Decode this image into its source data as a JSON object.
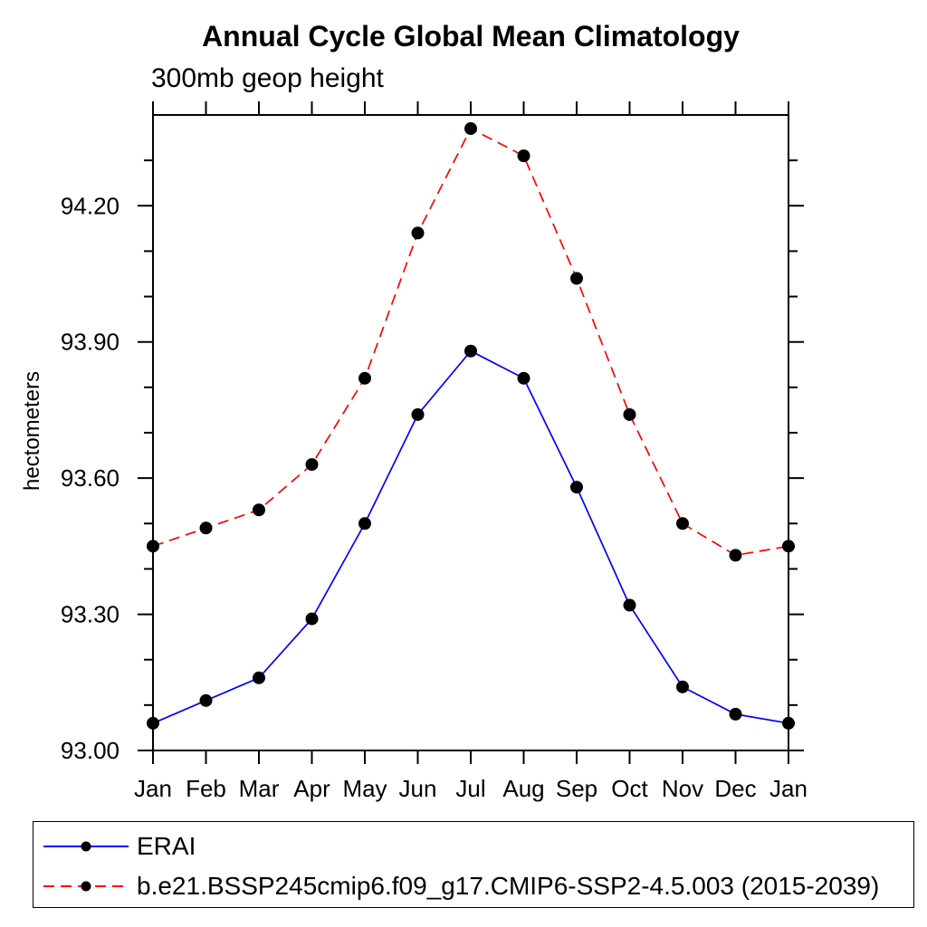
{
  "chart_data": {
    "type": "line",
    "title": "Annual Cycle Global Mean Climatology",
    "subtitle": "300mb geop height",
    "ylabel": "hectometers",
    "xlabel": "",
    "categories": [
      "Jan",
      "Feb",
      "Mar",
      "Apr",
      "May",
      "Jun",
      "Jul",
      "Aug",
      "Sep",
      "Oct",
      "Nov",
      "Dec",
      "Jan"
    ],
    "ylim": [
      93.0,
      94.4
    ],
    "y_major_ticks": [
      93.0,
      93.3,
      93.6,
      93.9,
      94.2
    ],
    "y_tick_labels": [
      "93.00",
      "93.30",
      "93.60",
      "93.90",
      "94.20"
    ],
    "y_minor_step": 0.1,
    "grid": false,
    "legend_position": "bottom",
    "series": [
      {
        "name": "ERAI",
        "color": "#0000ff",
        "style": "solid",
        "marker": "circle",
        "marker_color": "#000000",
        "values": [
          93.06,
          93.11,
          93.16,
          93.29,
          93.5,
          93.74,
          93.88,
          93.82,
          93.58,
          93.32,
          93.14,
          93.08,
          93.06
        ]
      },
      {
        "name": "b.e21.BSSP245cmip6.f09_g17.CMIP6-SSP2-4.5.003 (2015-2039)",
        "color": "#ff0000",
        "style": "dashed",
        "marker": "circle",
        "marker_color": "#000000",
        "values": [
          93.45,
          93.49,
          93.53,
          93.63,
          93.82,
          94.14,
          94.37,
          94.31,
          94.04,
          93.74,
          93.5,
          93.43,
          93.45
        ]
      }
    ]
  },
  "colors": {
    "background": "#ffffff",
    "axis": "#000000",
    "text": "#000000",
    "legend_border": "#000000"
  }
}
